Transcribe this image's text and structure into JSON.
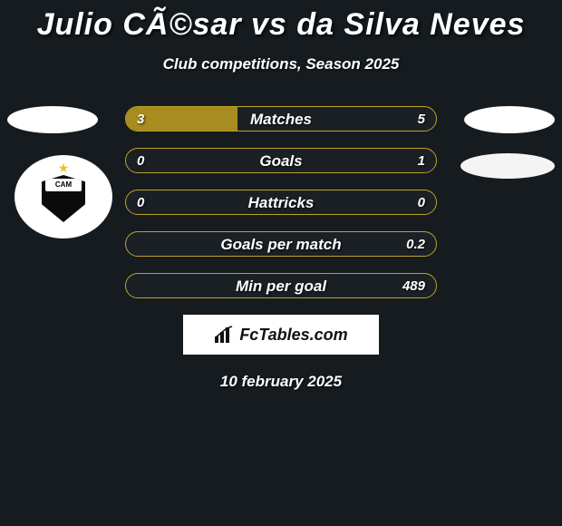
{
  "title": "Julio CÃ©sar vs da Silva Neves",
  "subtitle": "Club competitions, Season 2025",
  "colors": {
    "fill": "#a88c1f",
    "border": "#bfa12a",
    "background": "#151b1f",
    "text": "#ffffff"
  },
  "club_badge": {
    "text": "CAM",
    "star_color": "#f2c21a",
    "shield_color": "#0b0b0b"
  },
  "rows": [
    {
      "label": "Matches",
      "left": "3",
      "right": "5",
      "fill_left_pct": 36,
      "fill_right_pct": 0
    },
    {
      "label": "Goals",
      "left": "0",
      "right": "1",
      "fill_left_pct": 0,
      "fill_right_pct": 0
    },
    {
      "label": "Hattricks",
      "left": "0",
      "right": "0",
      "fill_left_pct": 0,
      "fill_right_pct": 0
    },
    {
      "label": "Goals per match",
      "left": "",
      "right": "0.2",
      "fill_left_pct": 0,
      "fill_right_pct": 0
    },
    {
      "label": "Min per goal",
      "left": "",
      "right": "489",
      "fill_left_pct": 0,
      "fill_right_pct": 0
    }
  ],
  "brand": "FcTables.com",
  "date": "10 february 2025"
}
